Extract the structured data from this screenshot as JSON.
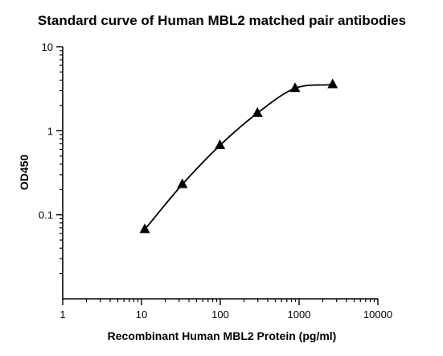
{
  "chart_data": {
    "type": "scatter",
    "title": "Standard curve of Human MBL2 matched pair antibodies",
    "xlabel": "Recombinant Human MBL2 Protein (pg/ml)",
    "ylabel": "OD450",
    "xscale": "log",
    "yscale": "log",
    "xlim": [
      1,
      10000
    ],
    "ylim": [
      0.01,
      10
    ],
    "x_ticks": [
      1,
      10,
      100,
      1000,
      10000
    ],
    "x_tick_labels": [
      "1",
      "10",
      "100",
      "1000",
      "10000"
    ],
    "y_ticks": [
      0.1,
      1,
      10
    ],
    "y_tick_labels": [
      "0.1",
      "1",
      "10"
    ],
    "grid": false,
    "legend": "none",
    "marker": "triangle",
    "color": "#000000",
    "series": [
      {
        "x": [
          11,
          33,
          99,
          296,
          889,
          2667
        ],
        "y": [
          0.067,
          0.23,
          0.67,
          1.62,
          3.2,
          3.55
        ],
        "fit": "smooth curve"
      }
    ]
  }
}
